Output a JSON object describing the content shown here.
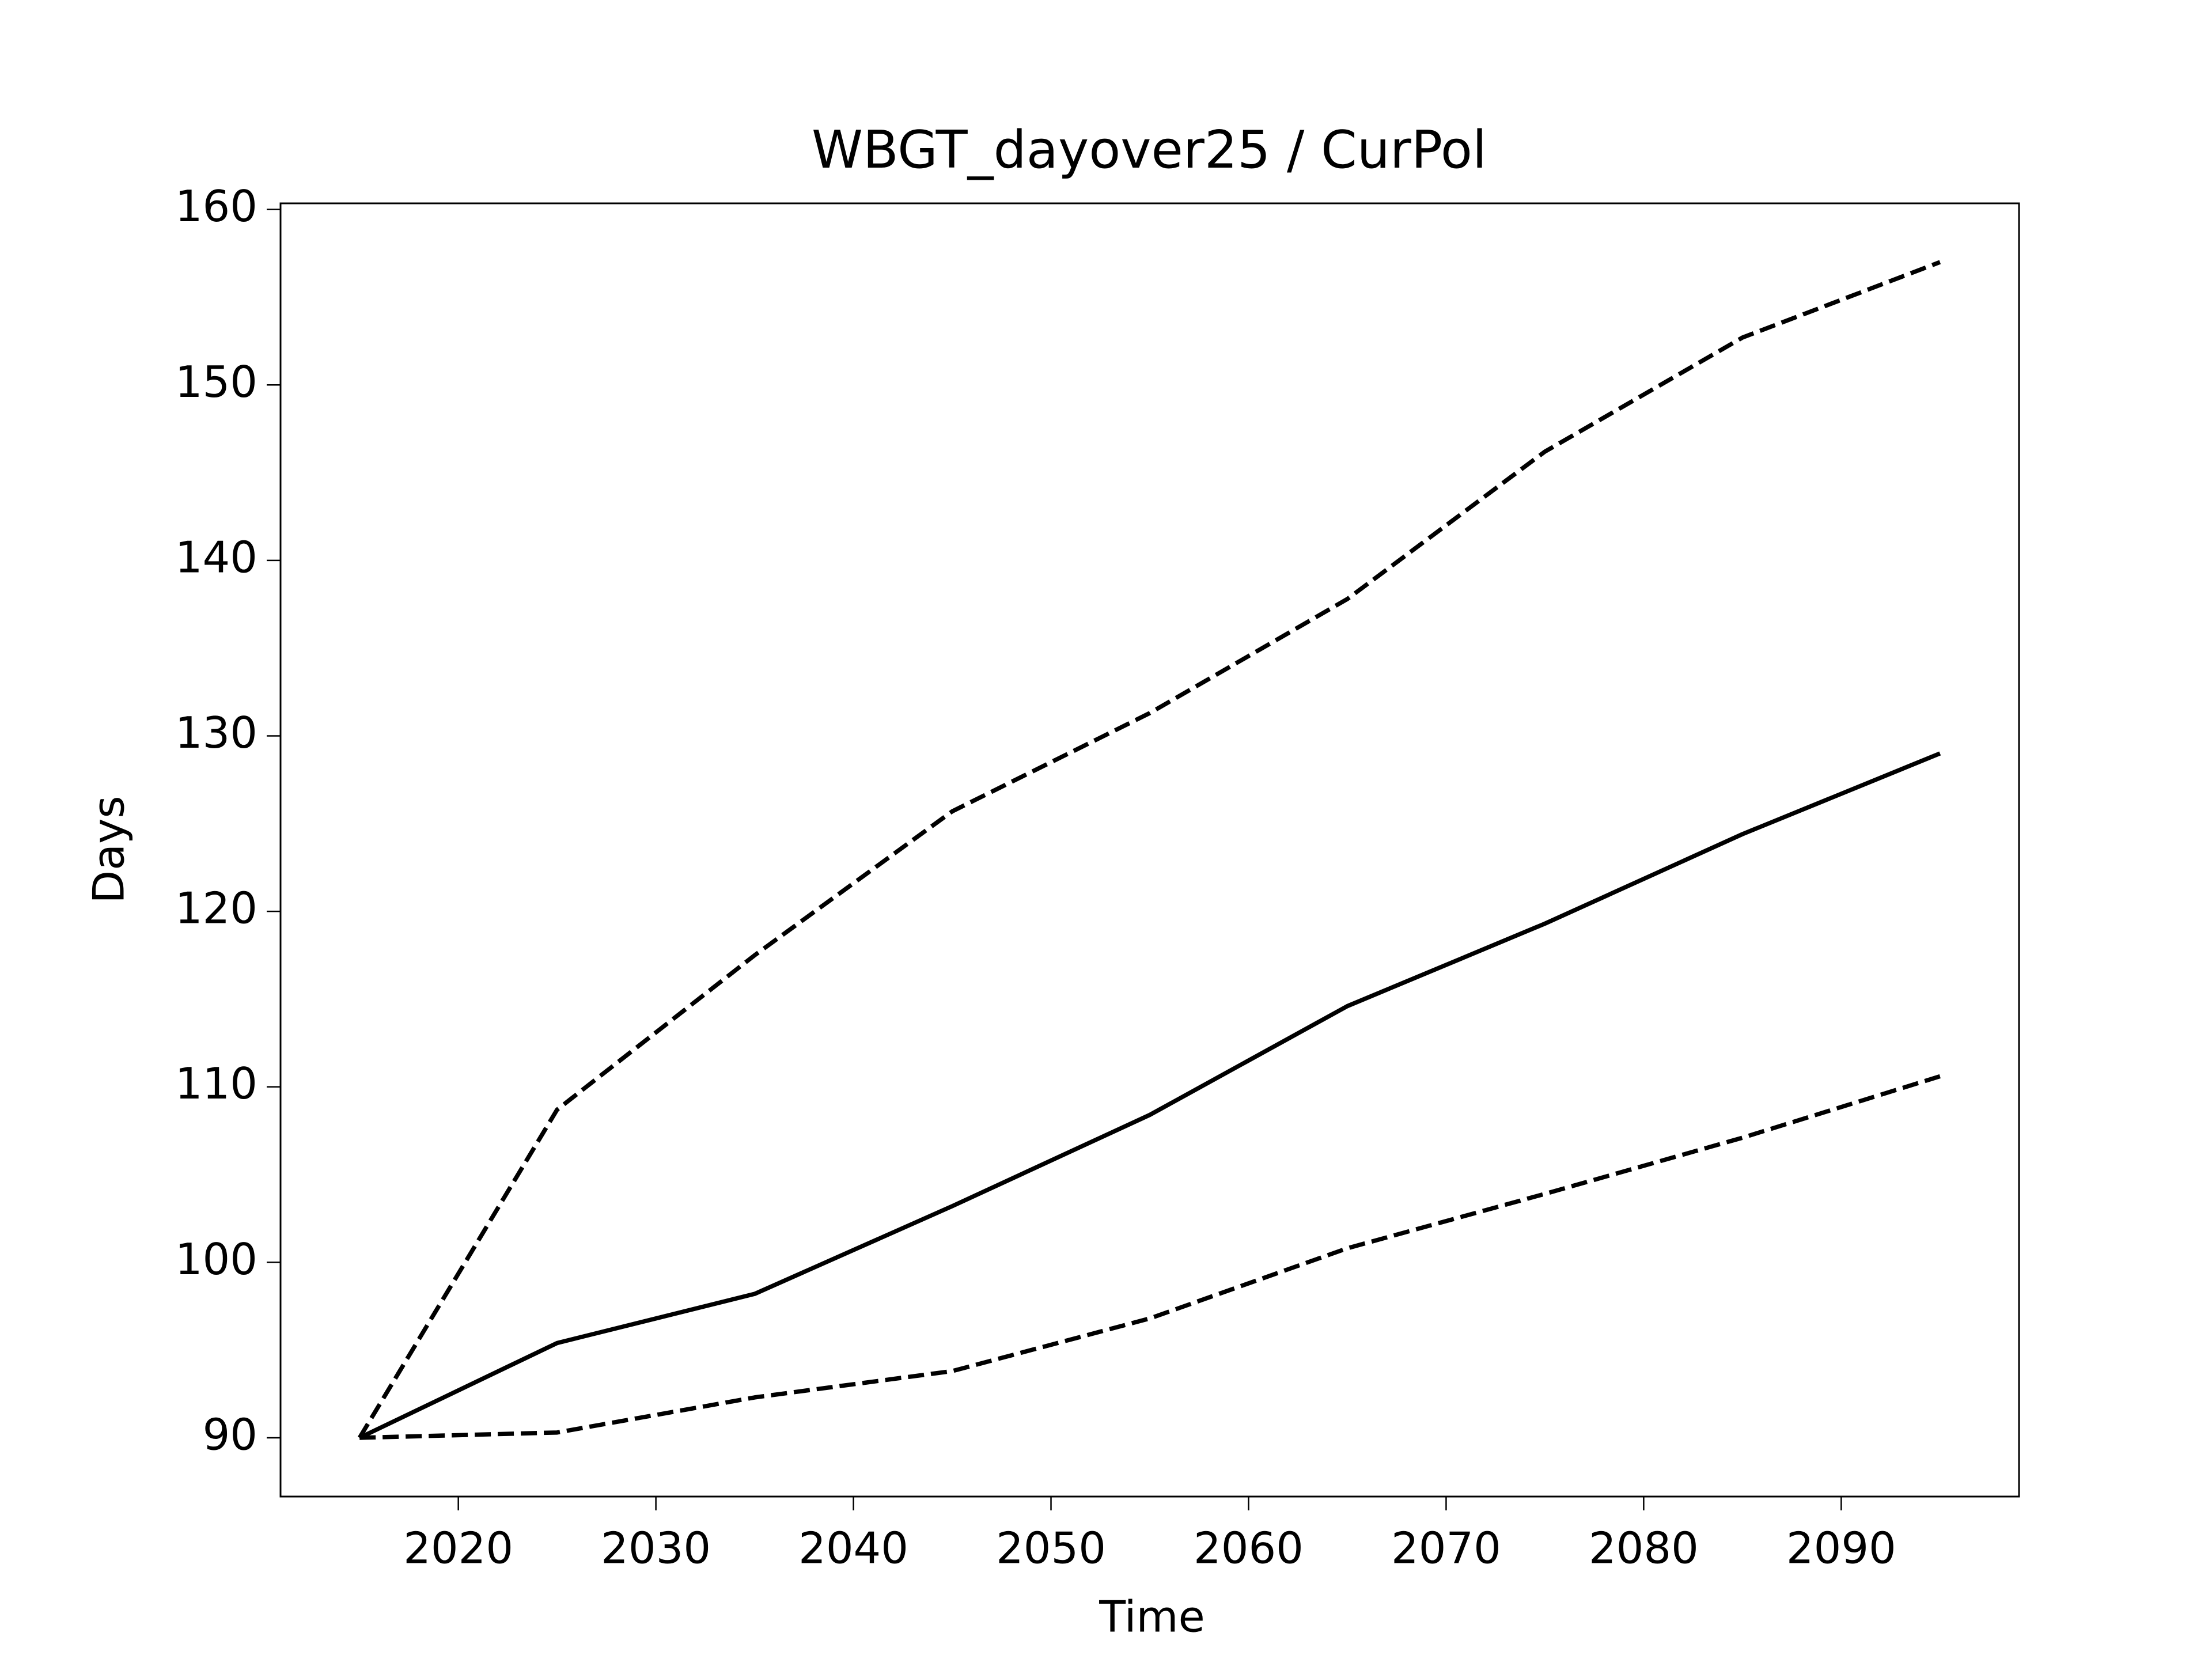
{
  "chart_data": {
    "type": "line",
    "title": "WBGT_dayover25 / CurPol",
    "x_label": "Time",
    "y_label": "Days",
    "x": [
      2015,
      2025,
      2035,
      2045,
      2055,
      2065,
      2075,
      2085,
      2095
    ],
    "series": [
      {
        "color": "#000000",
        "dashed": false,
        "values": [
          90,
          95.4,
          98.2,
          103.2,
          108.4,
          114.6,
          119.3,
          124.4,
          129.0
        ]
      },
      {
        "color": "#000000",
        "dashed": true,
        "values": [
          90,
          108.7,
          117.5,
          125.7,
          131.3,
          137.8,
          146.2,
          152.7,
          157.0
        ]
      },
      {
        "color": "#000000",
        "dashed": true,
        "values": [
          90,
          90.3,
          92.3,
          93.8,
          96.8,
          100.8,
          103.9,
          107.1,
          110.6
        ]
      }
    ],
    "xlim": [
      2011,
      2099
    ],
    "xticks": [
      2020,
      2030,
      2040,
      2050,
      2060,
      2070,
      2080,
      2090
    ],
    "ylim": [
      86.65,
      160.35
    ],
    "yticks": [
      90,
      100,
      110,
      120,
      130,
      140,
      150,
      160
    ],
    "grid": false
  }
}
